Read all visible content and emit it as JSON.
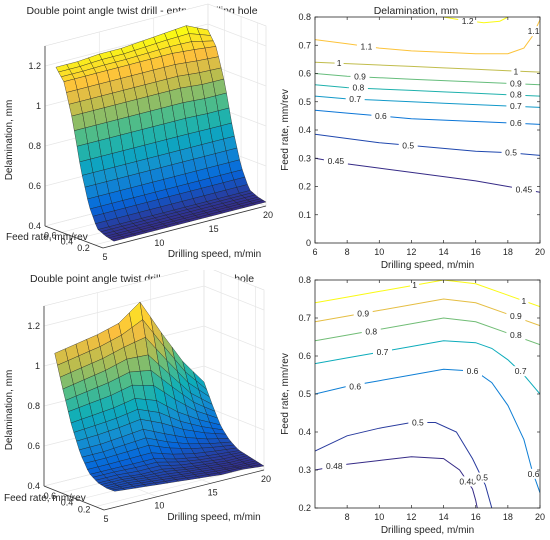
{
  "chart_data": [
    {
      "type": "surface",
      "title": "Double point angle twist drill - entry of drilling hole",
      "xlabel": "Drilling speed, m/min",
      "ylabel": "Feed rate, mm/rev",
      "zlabel": "Delamination, mm",
      "xlim": [
        5,
        20
      ],
      "ylim": [
        0.1,
        0.8
      ],
      "zlim": [
        0.4,
        1.3
      ],
      "xticks": [
        "5",
        "10",
        "15",
        "20"
      ],
      "yticks": [
        "0.2",
        "0.4",
        "0.6"
      ],
      "zticks": [
        "0.4",
        "0.6",
        "0.8",
        "1",
        "1.2"
      ],
      "x": [
        6,
        8,
        10,
        12,
        14,
        16,
        18,
        20
      ],
      "y": [
        0.1,
        0.2,
        0.3,
        0.4,
        0.5,
        0.6,
        0.7,
        0.8
      ],
      "z": [
        [
          0.42,
          0.42,
          0.42,
          0.42,
          0.42,
          0.42,
          0.42,
          0.42
        ],
        [
          0.43,
          0.43,
          0.43,
          0.43,
          0.43,
          0.43,
          0.43,
          0.43
        ],
        [
          0.45,
          0.45,
          0.45,
          0.45,
          0.45,
          0.45,
          0.45,
          0.45
        ],
        [
          0.55,
          0.55,
          0.55,
          0.55,
          0.55,
          0.55,
          0.55,
          0.55
        ],
        [
          0.72,
          0.72,
          0.72,
          0.72,
          0.72,
          0.72,
          0.72,
          0.72
        ],
        [
          0.95,
          0.95,
          0.95,
          0.95,
          0.95,
          0.95,
          0.94,
          0.94
        ],
        [
          1.12,
          1.12,
          1.12,
          1.12,
          1.12,
          1.12,
          1.11,
          1.1
        ],
        [
          1.18,
          1.18,
          1.19,
          1.19,
          1.2,
          1.21,
          1.22,
          1.17
        ]
      ],
      "grid": true,
      "colormap": "parula"
    },
    {
      "type": "contour",
      "title": "Delamination, mm",
      "xlabel": "Drilling speed, m/min",
      "ylabel": "Feed rate, mm/rev",
      "xlim": [
        6,
        20
      ],
      "ylim": [
        0,
        0.8
      ],
      "xticks": [
        "6",
        "8",
        "10",
        "12",
        "14",
        "16",
        "18",
        "20"
      ],
      "yticks": [
        "0",
        "0.1",
        "0.2",
        "0.3",
        "0.4",
        "0.5",
        "0.6",
        "0.7",
        "0.8"
      ],
      "levels": [
        {
          "level": "0.45",
          "x": [
            6,
            8,
            10,
            12,
            14,
            16,
            18,
            20
          ],
          "y": [
            0.3,
            0.28,
            0.265,
            0.25,
            0.235,
            0.22,
            0.2,
            0.18
          ]
        },
        {
          "level": "0.5",
          "x": [
            6,
            8,
            10,
            12,
            14,
            16,
            18,
            20
          ],
          "y": [
            0.385,
            0.37,
            0.355,
            0.345,
            0.335,
            0.325,
            0.32,
            0.31
          ]
        },
        {
          "level": "0.6",
          "x": [
            6,
            8,
            10,
            12,
            14,
            16,
            18,
            20
          ],
          "y": [
            0.47,
            0.46,
            0.45,
            0.44,
            0.435,
            0.43,
            0.425,
            0.42
          ]
        },
        {
          "level": "0.7",
          "x": [
            6,
            8,
            10,
            12,
            14,
            16,
            18,
            20
          ],
          "y": [
            0.52,
            0.51,
            0.505,
            0.5,
            0.495,
            0.49,
            0.485,
            0.48
          ]
        },
        {
          "level": "0.8",
          "x": [
            6,
            8,
            10,
            12,
            14,
            16,
            18,
            20
          ],
          "y": [
            0.56,
            0.55,
            0.545,
            0.54,
            0.535,
            0.53,
            0.525,
            0.52
          ]
        },
        {
          "level": "0.9",
          "x": [
            6,
            8,
            10,
            12,
            14,
            16,
            18,
            20
          ],
          "y": [
            0.6,
            0.59,
            0.585,
            0.58,
            0.575,
            0.57,
            0.565,
            0.56
          ]
        },
        {
          "level": "1",
          "x": [
            6,
            8,
            10,
            12,
            14,
            16,
            18,
            20
          ],
          "y": [
            0.64,
            0.635,
            0.63,
            0.625,
            0.62,
            0.615,
            0.61,
            0.605
          ]
        },
        {
          "level": "1.1",
          "x": [
            6,
            8,
            10,
            12,
            14,
            16,
            18,
            19,
            19.5,
            20
          ],
          "y": [
            0.72,
            0.705,
            0.69,
            0.68,
            0.675,
            0.67,
            0.67,
            0.69,
            0.73,
            0.79
          ]
        },
        {
          "level": "1.2",
          "x": [
            14,
            15,
            16.5,
            17.5,
            18
          ],
          "y": [
            0.8,
            0.79,
            0.78,
            0.785,
            0.8
          ]
        }
      ],
      "label_positions": [
        {
          "text": "0.45",
          "x": 7.3,
          "y": 0.29
        },
        {
          "text": "0.45",
          "x": 19,
          "y": 0.19
        },
        {
          "text": "0.5",
          "x": 11.8,
          "y": 0.345
        },
        {
          "text": "0.5",
          "x": 18.2,
          "y": 0.32
        },
        {
          "text": "0.6",
          "x": 10.1,
          "y": 0.45
        },
        {
          "text": "0.6",
          "x": 18.5,
          "y": 0.425
        },
        {
          "text": "0.7",
          "x": 8.5,
          "y": 0.51
        },
        {
          "text": "0.7",
          "x": 18.5,
          "y": 0.485
        },
        {
          "text": "0.8",
          "x": 8.7,
          "y": 0.55
        },
        {
          "text": "0.8",
          "x": 18.5,
          "y": 0.525
        },
        {
          "text": "0.9",
          "x": 8.8,
          "y": 0.59
        },
        {
          "text": "0.9",
          "x": 18.5,
          "y": 0.565
        },
        {
          "text": "1",
          "x": 7.5,
          "y": 0.638
        },
        {
          "text": "1",
          "x": 18.5,
          "y": 0.607
        },
        {
          "text": "1.1",
          "x": 9.2,
          "y": 0.695
        },
        {
          "text": "1.1",
          "x": 19.6,
          "y": 0.75
        },
        {
          "text": "1.2",
          "x": 15.5,
          "y": 0.785
        }
      ]
    },
    {
      "type": "surface",
      "title": "Double point angle twist drill - exit of drilling hole",
      "xlabel": "Drilling speed, m/min",
      "ylabel": "Feed rate, mm/rev",
      "zlabel": "Delamination, mm",
      "xlim": [
        5,
        20
      ],
      "ylim": [
        0.1,
        0.8
      ],
      "zlim": [
        0.4,
        1.3
      ],
      "xticks": [
        "5",
        "10",
        "15",
        "20"
      ],
      "yticks": [
        "0.2",
        "0.4",
        "0.6"
      ],
      "zticks": [
        "0.4",
        "0.6",
        "0.8",
        "1",
        "1.2"
      ],
      "x": [
        6,
        8,
        10,
        12,
        14,
        16,
        18,
        20
      ],
      "y": [
        0.1,
        0.2,
        0.3,
        0.4,
        0.5,
        0.6,
        0.7,
        0.8
      ],
      "z": [
        [
          0.48,
          0.47,
          0.46,
          0.45,
          0.44,
          0.43,
          0.43,
          0.42
        ],
        [
          0.48,
          0.48,
          0.47,
          0.46,
          0.45,
          0.44,
          0.43,
          0.43
        ],
        [
          0.49,
          0.49,
          0.48,
          0.48,
          0.46,
          0.45,
          0.44,
          0.44
        ],
        [
          0.52,
          0.52,
          0.52,
          0.52,
          0.49,
          0.47,
          0.46,
          0.45
        ],
        [
          0.6,
          0.6,
          0.61,
          0.62,
          0.57,
          0.53,
          0.5,
          0.48
        ],
        [
          0.72,
          0.73,
          0.74,
          0.76,
          0.72,
          0.64,
          0.58,
          0.53
        ],
        [
          0.88,
          0.9,
          0.92,
          0.95,
          0.94,
          0.82,
          0.7,
          0.62
        ],
        [
          1.05,
          1.07,
          1.09,
          1.12,
          1.2,
          1.02,
          0.85,
          0.72
        ]
      ],
      "grid": true,
      "colormap": "parula"
    },
    {
      "type": "contour",
      "title": "",
      "xlabel": "Drilling speed, m/min",
      "ylabel": "Feed rate, mm/rev",
      "xlim": [
        6,
        20
      ],
      "ylim": [
        0.2,
        0.8
      ],
      "xticks": [
        "8",
        "10",
        "12",
        "14",
        "16",
        "18",
        "20"
      ],
      "yticks": [
        "0.2",
        "0.3",
        "0.4",
        "0.5",
        "0.6",
        "0.7",
        "0.8"
      ],
      "levels": [
        {
          "level": "0.48",
          "x": [
            6,
            8,
            10,
            12,
            14,
            15,
            15.8,
            16,
            16.1
          ],
          "y": [
            0.3,
            0.315,
            0.325,
            0.335,
            0.33,
            0.3,
            0.25,
            0.22,
            0.2
          ]
        },
        {
          "level": "0.5",
          "x": [
            6,
            8,
            10,
            12,
            13.5,
            14.8,
            15.8,
            16.6,
            17
          ],
          "y": [
            0.35,
            0.39,
            0.41,
            0.425,
            0.425,
            0.4,
            0.33,
            0.26,
            0.2
          ]
        },
        {
          "level": "0.6",
          "x": [
            6,
            8,
            10,
            12,
            14,
            16,
            17,
            18,
            19,
            19.5,
            20
          ],
          "y": [
            0.5,
            0.52,
            0.535,
            0.55,
            0.565,
            0.56,
            0.53,
            0.47,
            0.38,
            0.3,
            0.24
          ]
        },
        {
          "level": "0.7",
          "x": [
            6,
            8,
            10,
            12,
            14,
            16,
            17,
            18,
            19,
            20
          ],
          "y": [
            0.58,
            0.595,
            0.61,
            0.625,
            0.64,
            0.635,
            0.62,
            0.59,
            0.55,
            0.5
          ]
        },
        {
          "level": "0.8",
          "x": [
            6,
            8,
            10,
            12,
            14,
            16,
            18,
            20
          ],
          "y": [
            0.64,
            0.655,
            0.67,
            0.685,
            0.7,
            0.69,
            0.66,
            0.63
          ]
        },
        {
          "level": "0.9",
          "x": [
            6,
            8,
            10,
            12,
            14,
            16,
            18,
            20
          ],
          "y": [
            0.69,
            0.705,
            0.72,
            0.735,
            0.75,
            0.74,
            0.71,
            0.68
          ]
        },
        {
          "level": "1",
          "x": [
            6,
            8,
            10,
            12,
            14,
            16,
            18,
            20
          ],
          "y": [
            0.74,
            0.755,
            0.77,
            0.785,
            0.8,
            0.79,
            0.76,
            0.73
          ]
        }
      ],
      "label_positions": [
        {
          "text": "0.48",
          "x": 7.2,
          "y": 0.31
        },
        {
          "text": "0.48",
          "x": 15.5,
          "y": 0.27
        },
        {
          "text": "0.5",
          "x": 12.4,
          "y": 0.425
        },
        {
          "text": "0.5",
          "x": 16.4,
          "y": 0.28
        },
        {
          "text": "0.6",
          "x": 8.5,
          "y": 0.52
        },
        {
          "text": "0.6",
          "x": 15.8,
          "y": 0.56
        },
        {
          "text": "0.6",
          "x": 19.6,
          "y": 0.29
        },
        {
          "text": "0.7",
          "x": 10.2,
          "y": 0.61
        },
        {
          "text": "0.7",
          "x": 18.8,
          "y": 0.56
        },
        {
          "text": "0.8",
          "x": 9.5,
          "y": 0.665
        },
        {
          "text": "0.8",
          "x": 18.5,
          "y": 0.655
        },
        {
          "text": "0.9",
          "x": 9.0,
          "y": 0.712
        },
        {
          "text": "0.9",
          "x": 18.5,
          "y": 0.705
        },
        {
          "text": "1",
          "x": 12.2,
          "y": 0.787
        },
        {
          "text": "1",
          "x": 19.0,
          "y": 0.745
        }
      ]
    }
  ]
}
